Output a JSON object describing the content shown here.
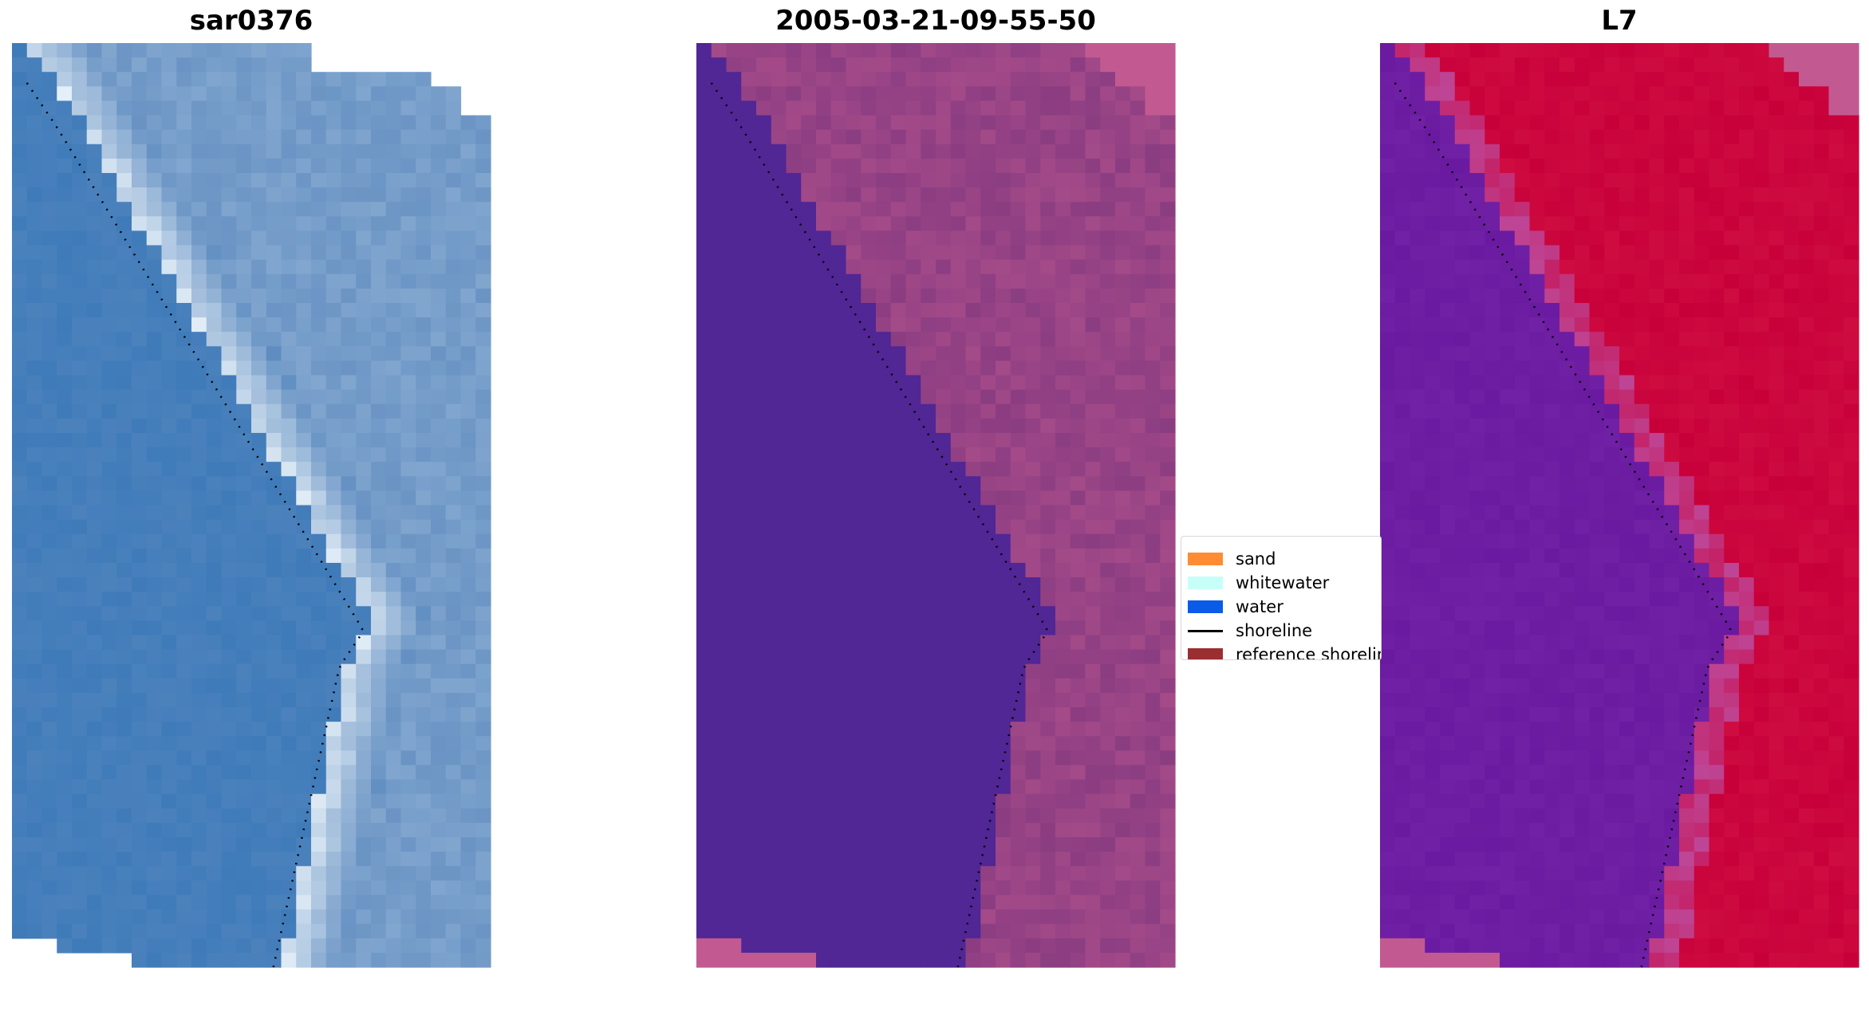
{
  "figure": {
    "panels": [
      {
        "id": "rgb",
        "title": "sar0376",
        "description": "true color satellite image of coastline",
        "colors": {
          "water": "#3a78b8",
          "foam": "#eef6fb",
          "land": "#6b94c4"
        }
      },
      {
        "id": "classified",
        "title": "2005-03-21-09-55-50",
        "description": "classified image overlay",
        "colors": {
          "water": "#512695",
          "land": "#8b3d82",
          "nodata": "#c25a91"
        }
      },
      {
        "id": "mndwi",
        "title": "L7",
        "description": "MNDWI index image",
        "colors": {
          "water": "#6a1aa0",
          "land": "#c8003a",
          "nodata": "#c25a91"
        }
      }
    ],
    "legend": {
      "items": [
        {
          "label": "sand",
          "color": "#ff8c33",
          "kind": "patch"
        },
        {
          "label": "whitewater",
          "color": "#c6fff8",
          "kind": "patch"
        },
        {
          "label": "water",
          "color": "#0a5be8",
          "kind": "patch"
        },
        {
          "label": "shoreline",
          "color": "#000000",
          "kind": "line"
        },
        {
          "label": "reference shoreline",
          "color": "#9a2e31",
          "kind": "patch"
        }
      ]
    }
  }
}
